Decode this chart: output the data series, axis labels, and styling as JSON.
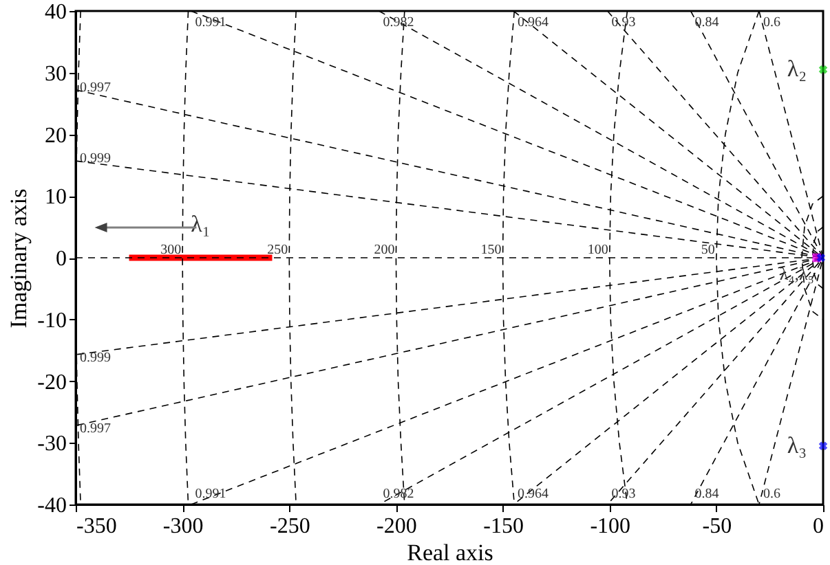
{
  "chart_data": {
    "type": "line",
    "xlabel": "Real axis",
    "ylabel": "Imaginary axis",
    "xlim": [
      -350,
      0
    ],
    "ylim": [
      -40,
      40
    ],
    "xticks": [
      -350,
      -300,
      -250,
      -200,
      -150,
      -100,
      -50,
      0
    ],
    "yticks": [
      -40,
      -30,
      -20,
      -10,
      0,
      10,
      20,
      30,
      40
    ],
    "series": [
      {
        "color": "#000000",
        "line_style": "dashed",
        "x": [
          -350,
          0
        ],
        "values": [
          0,
          0
        ]
      },
      {
        "color": "#000000",
        "line_style": "dashed",
        "x": [
          -350,
          0,
          -350
        ],
        "values": [
          15.7,
          0,
          -15.7
        ]
      },
      {
        "color": "#000000",
        "line_style": "dashed",
        "x": [
          -350,
          0,
          -350
        ],
        "values": [
          27.2,
          0,
          -27.2
        ]
      },
      {
        "color": "#000000",
        "line_style": "dashed",
        "x": [
          -296,
          0,
          -296
        ],
        "values": [
          40,
          0,
          -40
        ]
      },
      {
        "color": "#000000",
        "line_style": "dashed",
        "x": [
          -208,
          0,
          -208
        ],
        "values": [
          40,
          0,
          -40
        ]
      },
      {
        "color": "#000000",
        "line_style": "dashed",
        "x": [
          -145,
          0,
          -145
        ],
        "values": [
          40,
          0,
          -40
        ]
      },
      {
        "color": "#000000",
        "line_style": "dashed",
        "x": [
          -101,
          0,
          -101
        ],
        "values": [
          40,
          0,
          -40
        ]
      },
      {
        "color": "#000000",
        "line_style": "dashed",
        "x": [
          -62,
          0,
          -62
        ],
        "values": [
          40,
          0,
          -40
        ]
      },
      {
        "color": "#000000",
        "line_style": "dashed",
        "x": [
          -30,
          0,
          -30
        ],
        "values": [
          40,
          0,
          -40
        ]
      },
      {
        "color": "#000000",
        "line_style": "dashed",
        "x": [
          0,
          -2.5,
          -4.3,
          -5,
          -4.3,
          -2.5,
          0
        ],
        "values": [
          5,
          4.3,
          2.5,
          0,
          -2.5,
          -4.3,
          -5
        ]
      },
      {
        "color": "#000000",
        "line_style": "dashed",
        "x": [
          0,
          -5,
          -8.7,
          -10,
          -8.7,
          -5,
          0
        ],
        "values": [
          10,
          8.7,
          5,
          0,
          -5,
          -8.7,
          -10
        ]
      },
      {
        "color": "#000000",
        "line_style": "dashed",
        "x": [
          -30,
          -40,
          -45.8,
          -49,
          -50,
          -49,
          -45.8,
          -40,
          -30
        ],
        "values": [
          40,
          30,
          20,
          10,
          0,
          -10,
          -20,
          -30,
          -40
        ]
      },
      {
        "color": "#000000",
        "line_style": "dashed",
        "x": [
          -91.7,
          -95.4,
          -98,
          -99.5,
          -100,
          -99.5,
          -98,
          -95.4,
          -91.7
        ],
        "values": [
          40,
          30,
          20,
          10,
          0,
          -10,
          -20,
          -30,
          -40
        ]
      },
      {
        "color": "#000000",
        "line_style": "dashed",
        "x": [
          -144.6,
          -147,
          -148.7,
          -149.7,
          -150,
          -149.7,
          -148.7,
          -147,
          -144.6
        ],
        "values": [
          40,
          30,
          20,
          10,
          0,
          -10,
          -20,
          -30,
          -40
        ]
      },
      {
        "color": "#000000",
        "line_style": "dashed",
        "x": [
          -196,
          -197.7,
          -199,
          -199.7,
          -200,
          -199.7,
          -199,
          -197.7,
          -196
        ],
        "values": [
          40,
          30,
          20,
          10,
          0,
          -10,
          -20,
          -30,
          -40
        ]
      },
      {
        "color": "#000000",
        "line_style": "dashed",
        "x": [
          -246.8,
          -248.2,
          -249.2,
          -249.8,
          -250,
          -249.8,
          -249.2,
          -248.2,
          -246.8
        ],
        "values": [
          40,
          30,
          20,
          10,
          0,
          -10,
          -20,
          -30,
          -40
        ]
      },
      {
        "color": "#000000",
        "line_style": "dashed",
        "x": [
          -297.3,
          -298.5,
          -299.3,
          -299.8,
          -300,
          -299.8,
          -299.3,
          -298.5,
          -297.3
        ],
        "values": [
          40,
          30,
          20,
          10,
          0,
          -10,
          -20,
          -30,
          -40
        ]
      },
      {
        "color": "#000000",
        "line_style": "dashed",
        "x": [
          -347.7,
          -348.7,
          -349.4,
          -349.9,
          -350,
          -349.9,
          -349.4,
          -348.7,
          -347.7
        ],
        "values": [
          40,
          30,
          20,
          10,
          0,
          -10,
          -20,
          -30,
          -40
        ]
      },
      {
        "color": "#ff0000",
        "line_style": "solid",
        "x": [
          -325,
          -258
        ],
        "values": [
          0,
          0
        ]
      },
      {
        "type": "scatter",
        "color": "#00cc00",
        "marker": "cross",
        "x": [
          0
        ],
        "values": [
          30.5
        ]
      },
      {
        "type": "scatter",
        "color": "#0000ff",
        "marker": "cross",
        "x": [
          0
        ],
        "values": [
          -30.5
        ]
      },
      {
        "type": "scatter",
        "color": "#ff00ff",
        "marker": "square",
        "x": [
          -3
        ],
        "values": [
          0
        ]
      },
      {
        "type": "scatter",
        "color": "#0000ff",
        "marker": "cross",
        "x": [
          -1
        ],
        "values": [
          0
        ]
      }
    ],
    "annotations": [
      {
        "text": "0.991",
        "x": -296,
        "y": 40
      },
      {
        "text": "0.982",
        "x": -208,
        "y": 40
      },
      {
        "text": "0.964",
        "x": -145,
        "y": 40
      },
      {
        "text": "0.93",
        "x": -101,
        "y": 40
      },
      {
        "text": "0.84",
        "x": -62,
        "y": 40
      },
      {
        "text": "0.6",
        "x": -30,
        "y": 40
      },
      {
        "text": "0.991",
        "x": -296,
        "y": -40
      },
      {
        "text": "0.982",
        "x": -208,
        "y": -40
      },
      {
        "text": "0.964",
        "x": -145,
        "y": -40
      },
      {
        "text": "0.93",
        "x": -101,
        "y": -40
      },
      {
        "text": "0.84",
        "x": -62,
        "y": -40
      },
      {
        "text": "0.6",
        "x": -30,
        "y": -40
      },
      {
        "text": "0.997",
        "x": -350,
        "y": 27.2
      },
      {
        "text": "0.999",
        "x": -350,
        "y": 15.7
      },
      {
        "text": "0.999",
        "x": -350,
        "y": -15.7
      },
      {
        "text": "0.997",
        "x": -350,
        "y": -27.2
      },
      {
        "text": "300",
        "x": -300,
        "y": 0
      },
      {
        "text": "250",
        "x": -250,
        "y": 0
      },
      {
        "text": "200",
        "x": -200,
        "y": 0
      },
      {
        "text": "150",
        "x": -150,
        "y": 0
      },
      {
        "text": "100",
        "x": -100,
        "y": 0
      },
      {
        "text": "50",
        "x": -50,
        "y": 0
      },
      {
        "text": "λ₁",
        "x": -291.5,
        "y": 0
      },
      {
        "text": "λ₂",
        "x": 0,
        "y": 30.5
      },
      {
        "text": "λ₃",
        "x": 0,
        "y": -30.5
      },
      {
        "text": "λ₄,λ₅",
        "x": -3,
        "y": 0
      }
    ]
  }
}
